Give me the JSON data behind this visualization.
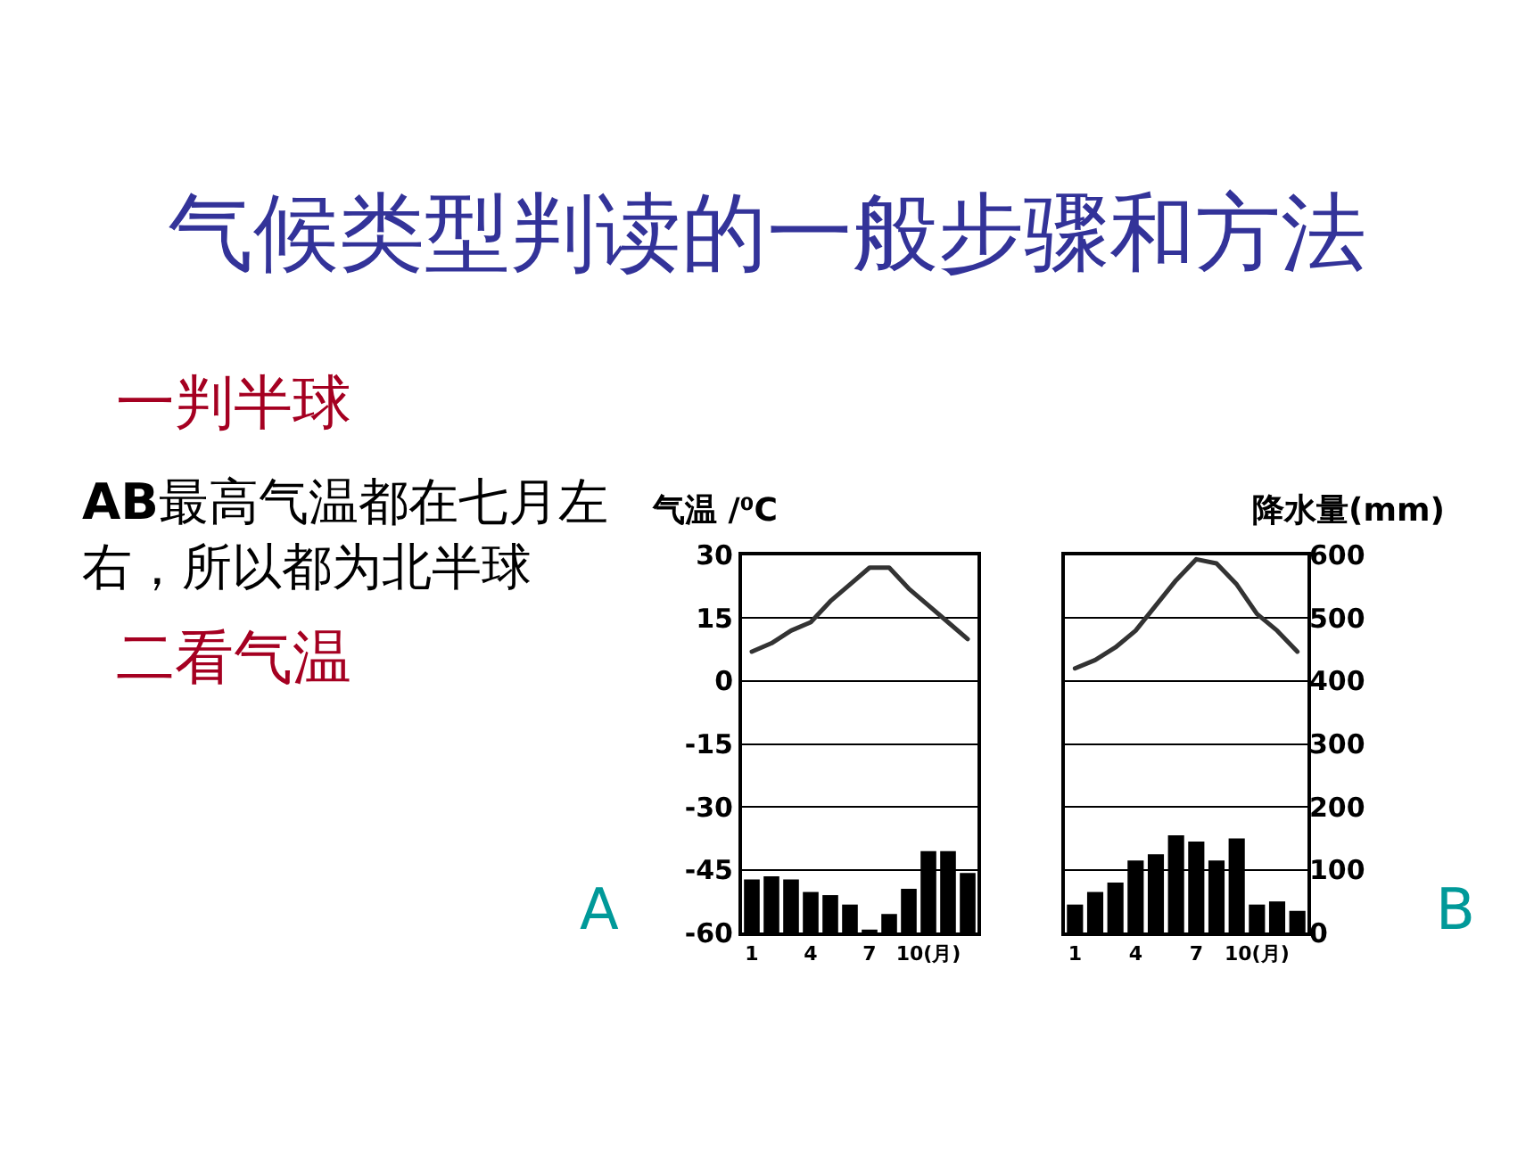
{
  "chart_data": [
    {
      "type": "other",
      "title": "气候类型判读的一般步骤和方法",
      "annotations": [
        "一判半球",
        "AB最高气温都在七月左右，所以都为北半球",
        "二看气温"
      ]
    },
    {
      "type": "bar",
      "categories": [
        "1",
        null,
        null,
        "4",
        null,
        null,
        "7",
        null,
        null,
        "10(月)",
        null,
        null
      ],
      "ylabel": "气温 /⁰C",
      "ylim": [
        -60,
        30
      ],
      "yticks": [
        -60,
        -45,
        -30,
        -15,
        0,
        15,
        30
      ],
      "y2lim": [
        0,
        600
      ],
      "grid": "y",
      "tick_labels": [
        "x",
        "y"
      ],
      "annotations": [
        "A"
      ],
      "series": [
        {
          "type": "line",
          "color": "#333333",
          "values": [
            7,
            9,
            12,
            14,
            19,
            23,
            27,
            27,
            22,
            18,
            14,
            10
          ]
        },
        {
          "axis": "y2",
          "color": "#000000",
          "values": [
            85,
            90,
            85,
            65,
            60,
            45,
            5,
            30,
            70,
            130,
            130,
            95
          ]
        }
      ]
    },
    {
      "type": "bar",
      "categories": [
        "1",
        null,
        null,
        "4",
        null,
        null,
        "7",
        null,
        null,
        "10(月)",
        null,
        null
      ],
      "y2label": "降水量(mm)",
      "ylim": [
        -60,
        30
      ],
      "y2lim": [
        0,
        600
      ],
      "y2ticks": [
        0,
        100,
        200,
        300,
        400,
        500,
        600
      ],
      "grid": "y",
      "tick_labels": [
        "x",
        "y2"
      ],
      "annotations": [
        "B"
      ],
      "series": [
        {
          "type": "line",
          "color": "#333333",
          "values": [
            3,
            5,
            8,
            12,
            18,
            24,
            29,
            28,
            23,
            16,
            12,
            7
          ]
        },
        {
          "axis": "y2",
          "color": "#000000",
          "values": [
            45,
            65,
            80,
            115,
            125,
            155,
            145,
            115,
            150,
            45,
            50,
            35
          ]
        }
      ]
    }
  ]
}
